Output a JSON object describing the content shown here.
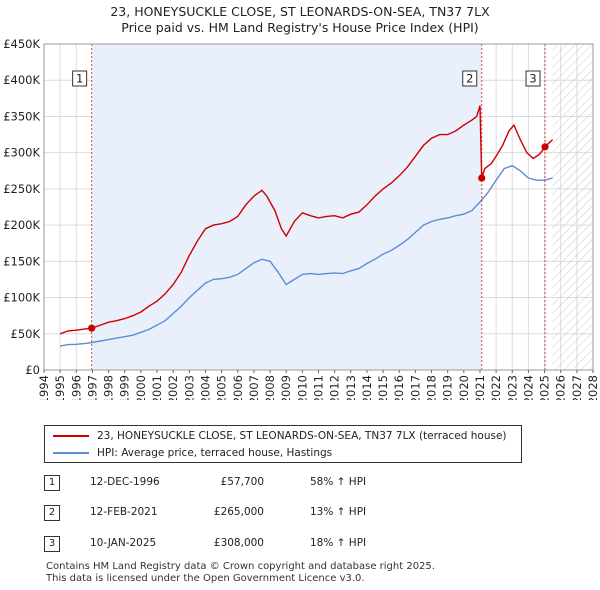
{
  "title_line1": "23, HONEYSUCKLE CLOSE, ST LEONARDS-ON-SEA, TN37 7LX",
  "title_line2": "Price paid vs. HM Land Registry's House Price Index (HPI)",
  "legend": {
    "property": "23, HONEYSUCKLE CLOSE, ST LEONARDS-ON-SEA, TN37 7LX (terraced house)",
    "hpi": "HPI: Average price, terraced house, Hastings"
  },
  "colors": {
    "property": "#cc0000",
    "hpi": "#5b8ed6",
    "marker_line": "#cc0000",
    "shade": "#eaf0fb"
  },
  "transactions": [
    {
      "num": "1",
      "date": "12-DEC-1996",
      "price": "£57,700",
      "hpi_change": "58% ↑ HPI"
    },
    {
      "num": "2",
      "date": "12-FEB-2021",
      "price": "£265,000",
      "hpi_change": "13% ↑ HPI"
    },
    {
      "num": "3",
      "date": "10-JAN-2025",
      "price": "£308,000",
      "hpi_change": "18% ↑ HPI"
    }
  ],
  "footer": {
    "line1": "Contains HM Land Registry data © Crown copyright and database right 2025.",
    "line2": "This data is licensed under the Open Government Licence v3.0."
  },
  "chart_data": {
    "type": "line",
    "title": "Price paid vs. HM Land Registry's House Price Index (HPI)",
    "xlim": [
      1994,
      2028
    ],
    "ylim": [
      0,
      450000
    ],
    "x_ticks": [
      "1994",
      "1995",
      "1996",
      "1997",
      "1998",
      "1999",
      "2000",
      "2001",
      "2002",
      "2003",
      "2004",
      "2005",
      "2006",
      "2007",
      "2008",
      "2009",
      "2010",
      "2011",
      "2012",
      "2013",
      "2014",
      "2015",
      "2016",
      "2017",
      "2018",
      "2019",
      "2020",
      "2021",
      "2022",
      "2023",
      "2024",
      "2025",
      "2026",
      "2027",
      "2028"
    ],
    "y_ticks": [
      {
        "value": 0,
        "label": "£0"
      },
      {
        "value": 50000,
        "label": "£50K"
      },
      {
        "value": 100000,
        "label": "£100K"
      },
      {
        "value": 150000,
        "label": "£150K"
      },
      {
        "value": 200000,
        "label": "£200K"
      },
      {
        "value": 250000,
        "label": "£250K"
      },
      {
        "value": 300000,
        "label": "£300K"
      },
      {
        "value": 350000,
        "label": "£350K"
      },
      {
        "value": 400000,
        "label": "£400K"
      },
      {
        "value": 450000,
        "label": "£450K"
      }
    ],
    "hatched_after": 2025.5,
    "series": [
      {
        "name": "23, HONEYSUCKLE CLOSE, ST LEONARDS-ON-SEA, TN37 7LX (terraced house)",
        "color": "#cc0000",
        "points": [
          [
            1995.0,
            50000
          ],
          [
            1995.5,
            54000
          ],
          [
            1996.0,
            55000
          ],
          [
            1996.5,
            56500
          ],
          [
            1996.95,
            57700
          ],
          [
            1997.5,
            62000
          ],
          [
            1998.0,
            66000
          ],
          [
            1998.5,
            68000
          ],
          [
            1999.0,
            71000
          ],
          [
            1999.5,
            75000
          ],
          [
            2000.0,
            80000
          ],
          [
            2000.5,
            88000
          ],
          [
            2001.0,
            95000
          ],
          [
            2001.5,
            105000
          ],
          [
            2002.0,
            118000
          ],
          [
            2002.5,
            135000
          ],
          [
            2003.0,
            158000
          ],
          [
            2003.5,
            178000
          ],
          [
            2004.0,
            195000
          ],
          [
            2004.5,
            200000
          ],
          [
            2005.0,
            202000
          ],
          [
            2005.5,
            205000
          ],
          [
            2006.0,
            212000
          ],
          [
            2006.5,
            228000
          ],
          [
            2007.0,
            240000
          ],
          [
            2007.5,
            248000
          ],
          [
            2007.8,
            240000
          ],
          [
            2008.3,
            220000
          ],
          [
            2008.7,
            195000
          ],
          [
            2009.0,
            185000
          ],
          [
            2009.5,
            205000
          ],
          [
            2010.0,
            217000
          ],
          [
            2010.5,
            213000
          ],
          [
            2011.0,
            210000
          ],
          [
            2011.5,
            212000
          ],
          [
            2012.0,
            213000
          ],
          [
            2012.5,
            210000
          ],
          [
            2013.0,
            215000
          ],
          [
            2013.5,
            218000
          ],
          [
            2014.0,
            228000
          ],
          [
            2014.5,
            240000
          ],
          [
            2015.0,
            250000
          ],
          [
            2015.5,
            258000
          ],
          [
            2016.0,
            268000
          ],
          [
            2016.5,
            280000
          ],
          [
            2017.0,
            295000
          ],
          [
            2017.5,
            310000
          ],
          [
            2018.0,
            320000
          ],
          [
            2018.5,
            325000
          ],
          [
            2019.0,
            325000
          ],
          [
            2019.5,
            330000
          ],
          [
            2020.0,
            338000
          ],
          [
            2020.5,
            345000
          ],
          [
            2020.8,
            350000
          ],
          [
            2021.0,
            365000
          ],
          [
            2021.11,
            265000
          ],
          [
            2021.3,
            278000
          ],
          [
            2021.7,
            285000
          ],
          [
            2022.0,
            295000
          ],
          [
            2022.4,
            310000
          ],
          [
            2022.8,
            330000
          ],
          [
            2023.1,
            338000
          ],
          [
            2023.5,
            318000
          ],
          [
            2023.9,
            300000
          ],
          [
            2024.3,
            292000
          ],
          [
            2024.7,
            298000
          ],
          [
            2025.03,
            308000
          ],
          [
            2025.5,
            318000
          ]
        ]
      },
      {
        "name": "HPI: Average price, terraced house, Hastings",
        "color": "#5b8ed6",
        "points": [
          [
            1995.0,
            33000
          ],
          [
            1995.5,
            35000
          ],
          [
            1996.0,
            35500
          ],
          [
            1996.5,
            36500
          ],
          [
            1997.0,
            38000
          ],
          [
            1997.5,
            40000
          ],
          [
            1998.0,
            42000
          ],
          [
            1998.5,
            44000
          ],
          [
            1999.0,
            46000
          ],
          [
            1999.5,
            48000
          ],
          [
            2000.0,
            52000
          ],
          [
            2000.5,
            56000
          ],
          [
            2001.0,
            62000
          ],
          [
            2001.5,
            68000
          ],
          [
            2002.0,
            78000
          ],
          [
            2002.5,
            88000
          ],
          [
            2003.0,
            100000
          ],
          [
            2003.5,
            110000
          ],
          [
            2004.0,
            120000
          ],
          [
            2004.5,
            125000
          ],
          [
            2005.0,
            126000
          ],
          [
            2005.5,
            128000
          ],
          [
            2006.0,
            132000
          ],
          [
            2006.5,
            140000
          ],
          [
            2007.0,
            148000
          ],
          [
            2007.5,
            153000
          ],
          [
            2008.0,
            150000
          ],
          [
            2008.5,
            135000
          ],
          [
            2009.0,
            118000
          ],
          [
            2009.5,
            125000
          ],
          [
            2010.0,
            132000
          ],
          [
            2010.5,
            133000
          ],
          [
            2011.0,
            132000
          ],
          [
            2011.5,
            133000
          ],
          [
            2012.0,
            134000
          ],
          [
            2012.5,
            133000
          ],
          [
            2013.0,
            137000
          ],
          [
            2013.5,
            140000
          ],
          [
            2014.0,
            147000
          ],
          [
            2014.5,
            153000
          ],
          [
            2015.0,
            160000
          ],
          [
            2015.5,
            165000
          ],
          [
            2016.0,
            172000
          ],
          [
            2016.5,
            180000
          ],
          [
            2017.0,
            190000
          ],
          [
            2017.5,
            200000
          ],
          [
            2018.0,
            205000
          ],
          [
            2018.5,
            208000
          ],
          [
            2019.0,
            210000
          ],
          [
            2019.5,
            213000
          ],
          [
            2020.0,
            215000
          ],
          [
            2020.5,
            220000
          ],
          [
            2021.0,
            232000
          ],
          [
            2021.5,
            245000
          ],
          [
            2022.0,
            262000
          ],
          [
            2022.5,
            278000
          ],
          [
            2023.0,
            282000
          ],
          [
            2023.5,
            275000
          ],
          [
            2024.0,
            265000
          ],
          [
            2024.5,
            262000
          ],
          [
            2025.0,
            262000
          ],
          [
            2025.5,
            265000
          ]
        ]
      }
    ],
    "sales": [
      {
        "label": "1",
        "x": 1996.95,
        "y": 57700
      },
      {
        "label": "2",
        "x": 2021.11,
        "y": 265000
      },
      {
        "label": "3",
        "x": 2025.03,
        "y": 308000
      }
    ]
  }
}
